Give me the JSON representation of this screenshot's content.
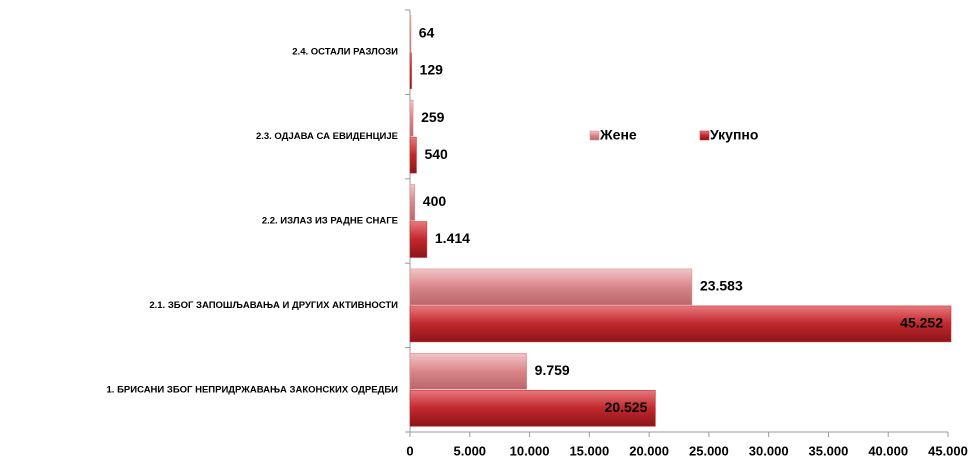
{
  "chart_data": {
    "type": "hbar",
    "categories": [
      "1. БРИСАНИ ЗБОГ НЕПРИДРЖАВАЊА ЗАКОНСКИХ ОДРЕДБИ",
      "2.1. ЗБОГ ЗАПОШЉАВАЊА И ДРУГИХ АКТИВНОСТИ",
      "2.2. ИЗЛАЗ ИЗ РАДНЕ СНАГЕ",
      "2.3. ОДЈАВА СА ЕВИДЕНЦИЈЕ",
      "2.4. ОСТАЛИ РАЗЛОЗИ"
    ],
    "series": [
      {
        "name": "Жене",
        "color": "#d9868a",
        "values": [
          9759,
          23583,
          400,
          259,
          64
        ],
        "value_labels": [
          "9.759",
          "23.583",
          "400",
          "259",
          "64"
        ]
      },
      {
        "name": "Укупно",
        "color": "#c0282d",
        "values": [
          20525,
          45252,
          1414,
          540,
          129
        ],
        "value_labels": [
          "20.525",
          "45.252",
          "1.414",
          "540",
          "129"
        ]
      }
    ],
    "xlim": [
      0,
      45000
    ],
    "xticks": [
      0,
      {
        "value": 5000,
        "label": "5.000"
      },
      {
        "value": 10000,
        "label": "10.000"
      },
      {
        "value": 15000,
        "label": "15.000"
      },
      {
        "value": 20000,
        "label": "20.000"
      },
      {
        "value": 25000,
        "label": "25.000"
      },
      {
        "value": 30000,
        "label": "30.000"
      },
      {
        "value": 35000,
        "label": "35.000"
      },
      {
        "value": 40000,
        "label": "40.000"
      },
      {
        "value": 45000,
        "label": "45.000"
      }
    ]
  }
}
